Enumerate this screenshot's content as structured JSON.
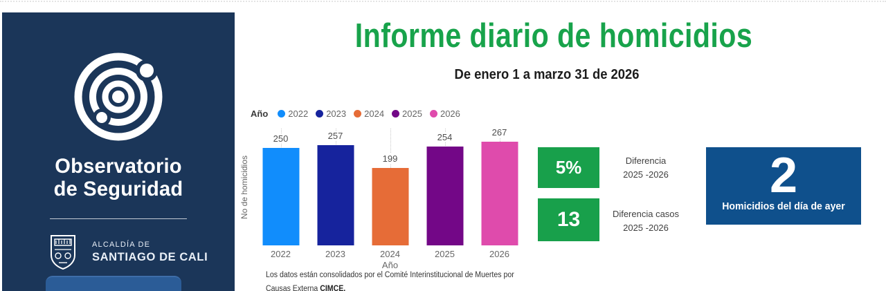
{
  "sidebar": {
    "org_line1": "Observatorio",
    "org_line2": "de Seguridad",
    "alcaldia_small": "ALCALDÍA DE",
    "alcaldia_big": "SANTIAGO DE CALI",
    "bg": "#1B3659",
    "button_color": "#2B5C97"
  },
  "header": {
    "title": "Informe diario de homicidios",
    "title_color": "#18A34B",
    "subtitle": "De enero 1 a marzo 31 de 2026"
  },
  "chart_data": {
    "type": "bar",
    "legend_title": "Año",
    "categories": [
      "2022",
      "2023",
      "2024",
      "2025",
      "2026"
    ],
    "values": [
      250,
      257,
      199,
      254,
      267
    ],
    "colors": [
      "#118DFC",
      "#16239D",
      "#E66C37",
      "#730787",
      "#DF4BAC"
    ],
    "title": "",
    "xlabel": "Año",
    "ylabel": "No de homicidios",
    "ylim": [
      0,
      300
    ],
    "grid": "vertical-dotted-droplines",
    "legend_position": "top-left",
    "data_labels": true
  },
  "kpis": [
    {
      "value": "5%",
      "label_line1": "Diferencia",
      "label_line2": "2025 -2026",
      "bg": "#18A04B"
    },
    {
      "value": "13",
      "label_line1": "Diferencia casos",
      "label_line2": "2025 -2026",
      "bg": "#18A04B"
    }
  ],
  "highlight": {
    "value": "2",
    "label": "Homicidios del día de ayer",
    "bg": "#0F508C"
  },
  "footnote": {
    "line1": "Los datos están consolidados por el Comité Interinstitucional de Muertes por",
    "line2_prefix": "Causas Externa ",
    "line2_bold": "CIMCE."
  }
}
